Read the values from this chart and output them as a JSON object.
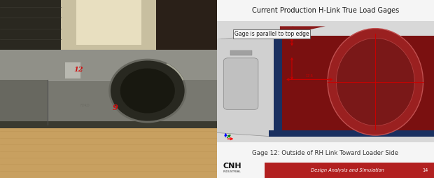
{
  "title": "Current Production H-Link True Load Gages",
  "annotation_text": "Gage is parallel to top edge",
  "caption": "Gage 12: Outside of RH Link Toward Loader Side",
  "footer_text": "Design Analysis and Simulation",
  "footer_page": "14",
  "logo_text": "CNH",
  "logo_sub": "INDUSTRIAL",
  "bg_color": "#ffffff",
  "title_fontsize": 7.0,
  "caption_fontsize": 6.2,
  "footer_fontsize": 4.8,
  "logo_fontsize": 8,
  "annotation_fontsize": 5.5,
  "title_color": "#1a1a1a",
  "caption_color": "#333333",
  "footer_bg": "#b22020",
  "footer_text_color": "#ffffff",
  "photo_floor_color": "#c8a870",
  "photo_wall_color": "#b8a888",
  "photo_part_color": "#787878",
  "photo_part_dark": "#404040",
  "photo_bg_top": "#c8c0a8",
  "cad_bg": "#d8d8d8",
  "red_part_color": "#7a1010",
  "red_part_light": "#9a2020",
  "gray_plate_color": "#b8b8b8",
  "gray_plate_light": "#d0d0d0",
  "blue_base_color": "#1a3060",
  "dim_color": "#cc0000",
  "annot_bg": "#f5f5f5",
  "annot_edge": "#555555"
}
